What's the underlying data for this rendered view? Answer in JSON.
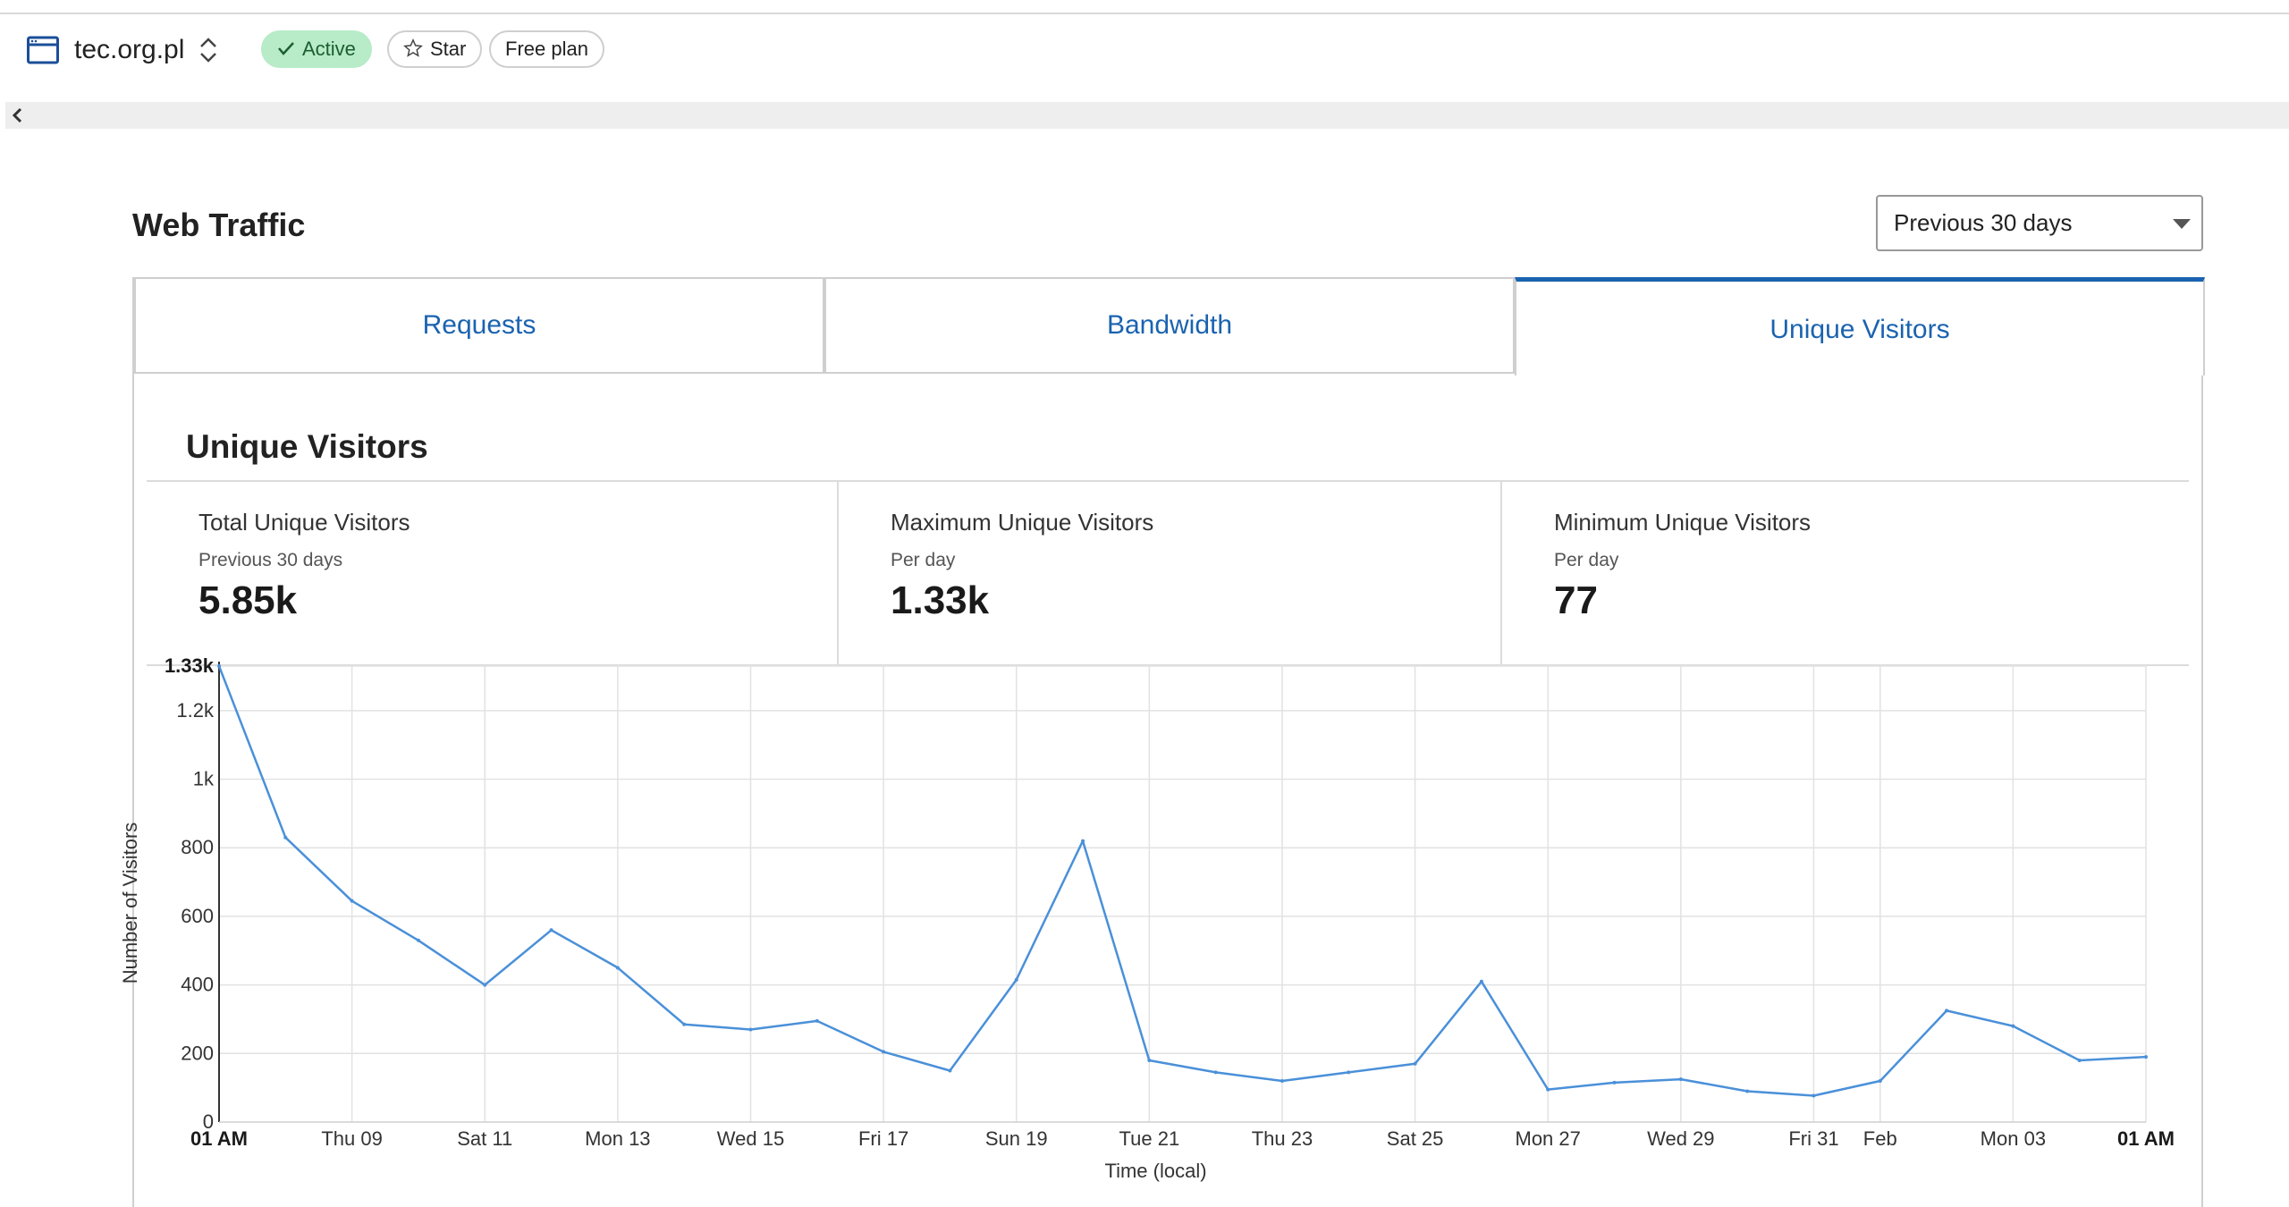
{
  "header": {
    "site_name": "tec.org.pl",
    "status_label": "Active",
    "star_label": "Star",
    "plan_label": "Free plan"
  },
  "page": {
    "title": "Web Traffic",
    "period_select": {
      "selected": "Previous 30 days"
    }
  },
  "tabs": [
    {
      "label": "Requests",
      "selected": false
    },
    {
      "label": "Bandwidth",
      "selected": false
    },
    {
      "label": "Unique Visitors",
      "selected": true
    }
  ],
  "section": {
    "title": "Unique Visitors",
    "stats": [
      {
        "label": "Total Unique Visitors",
        "sub": "Previous 30 days",
        "value": "5.85k"
      },
      {
        "label": "Maximum Unique Visitors",
        "sub": "Per day",
        "value": "1.33k"
      },
      {
        "label": "Minimum Unique Visitors",
        "sub": "Per day",
        "value": "77"
      }
    ]
  },
  "colors": {
    "accent": "#1a63b0",
    "line": "#4a90d9",
    "active_badge": "#b8ebc8"
  },
  "chart_data": {
    "type": "line",
    "ylabel": "Number of Visitors",
    "xlabel": "Time (local)",
    "ylim": [
      0,
      1330
    ],
    "grid": true,
    "y_ticks": [
      {
        "value": 0,
        "label": "0"
      },
      {
        "value": 200,
        "label": "200"
      },
      {
        "value": 400,
        "label": "400"
      },
      {
        "value": 600,
        "label": "600"
      },
      {
        "value": 800,
        "label": "800"
      },
      {
        "value": 1000,
        "label": "1k"
      },
      {
        "value": 1200,
        "label": "1.2k"
      },
      {
        "value": 1330,
        "label": "1.33k",
        "bold": true
      }
    ],
    "x_ticks": [
      {
        "index": 0,
        "label": "01 AM",
        "bold": true
      },
      {
        "index": 2,
        "label": "Thu 09"
      },
      {
        "index": 4,
        "label": "Sat 11"
      },
      {
        "index": 6,
        "label": "Mon 13"
      },
      {
        "index": 8,
        "label": "Wed 15"
      },
      {
        "index": 10,
        "label": "Fri 17"
      },
      {
        "index": 12,
        "label": "Sun 19"
      },
      {
        "index": 14,
        "label": "Tue 21"
      },
      {
        "index": 16,
        "label": "Thu 23"
      },
      {
        "index": 18,
        "label": "Sat 25"
      },
      {
        "index": 20,
        "label": "Mon 27"
      },
      {
        "index": 22,
        "label": "Wed 29"
      },
      {
        "index": 24,
        "label": "Fri 31"
      },
      {
        "index": 25,
        "label": "Feb"
      },
      {
        "index": 27,
        "label": "Mon 03"
      },
      {
        "index": 29,
        "label": "01 AM",
        "bold": true
      }
    ],
    "series": [
      {
        "values": [
          1330,
          830,
          645,
          530,
          400,
          560,
          450,
          285,
          270,
          295,
          205,
          150,
          415,
          820,
          180,
          145,
          120,
          145,
          170,
          410,
          95,
          115,
          125,
          90,
          77,
          120,
          325,
          280,
          180,
          190
        ]
      }
    ]
  }
}
